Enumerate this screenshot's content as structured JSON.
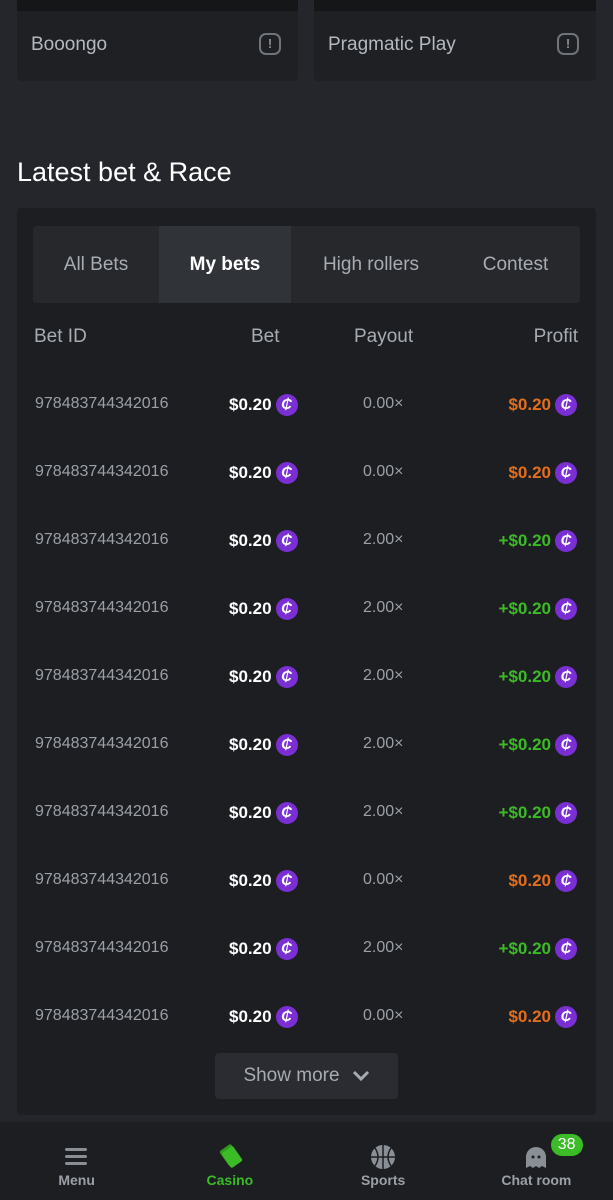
{
  "providers": [
    {
      "name": "Booongo"
    },
    {
      "name": "Pragmatic Play"
    }
  ],
  "section_title": "Latest bet & Race",
  "tabs": [
    {
      "label": "All Bets"
    },
    {
      "label": "My bets"
    },
    {
      "label": "High rollers"
    },
    {
      "label": "Contest"
    }
  ],
  "active_tab": "My bets",
  "columns": {
    "bet_id": "Bet ID",
    "bet": "Bet",
    "payout": "Payout",
    "profit": "Profit"
  },
  "rows": [
    {
      "id": "978483744342016",
      "bet": "$0.20",
      "payout": "0.00×",
      "profit": "$0.20",
      "win": false
    },
    {
      "id": "978483744342016",
      "bet": "$0.20",
      "payout": "0.00×",
      "profit": "$0.20",
      "win": false
    },
    {
      "id": "978483744342016",
      "bet": "$0.20",
      "payout": "2.00×",
      "profit": "+$0.20",
      "win": true
    },
    {
      "id": "978483744342016",
      "bet": "$0.20",
      "payout": "2.00×",
      "profit": "+$0.20",
      "win": true
    },
    {
      "id": "978483744342016",
      "bet": "$0.20",
      "payout": "2.00×",
      "profit": "+$0.20",
      "win": true
    },
    {
      "id": "978483744342016",
      "bet": "$0.20",
      "payout": "2.00×",
      "profit": "+$0.20",
      "win": true
    },
    {
      "id": "978483744342016",
      "bet": "$0.20",
      "payout": "2.00×",
      "profit": "+$0.20",
      "win": true
    },
    {
      "id": "978483744342016",
      "bet": "$0.20",
      "payout": "0.00×",
      "profit": "$0.20",
      "win": false
    },
    {
      "id": "978483744342016",
      "bet": "$0.20",
      "payout": "2.00×",
      "profit": "+$0.20",
      "win": true
    },
    {
      "id": "978483744342016",
      "bet": "$0.20",
      "payout": "0.00×",
      "profit": "$0.20",
      "win": false
    }
  ],
  "coin_symbol": "₵",
  "show_more": "Show more",
  "nav": [
    {
      "label": "Menu",
      "icon": "menu-icon"
    },
    {
      "label": "Casino",
      "icon": "cards-icon",
      "active": true
    },
    {
      "label": "Sports",
      "icon": "basketball-icon"
    },
    {
      "label": "Chat room",
      "icon": "chat-icon",
      "badge": "38"
    }
  ],
  "colors": {
    "win": "#3dbb26",
    "loss": "#e36f1e",
    "coin": "#7a2fd4",
    "active_nav": "#3bbb26"
  }
}
